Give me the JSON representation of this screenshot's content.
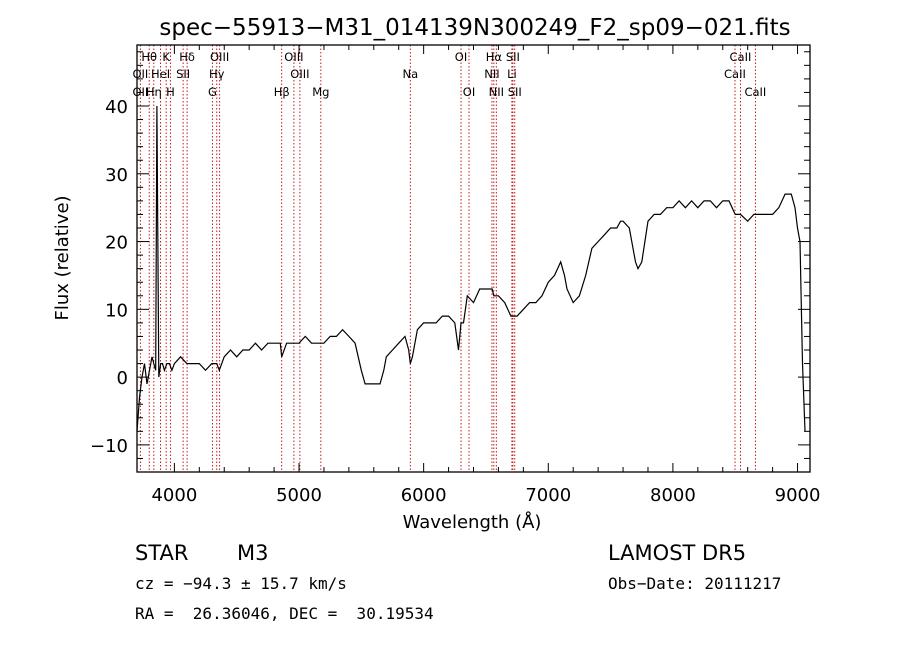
{
  "chart_data": {
    "type": "line",
    "title": "spec−55913−M31_014139N300249_F2_sp09−021.fits",
    "xlabel": "Wavelength (Å)",
    "ylabel": "Flux (relative)",
    "xlim": [
      3700,
      9100
    ],
    "ylim": [
      -14,
      49
    ],
    "xticks": [
      4000,
      5000,
      6000,
      7000,
      8000,
      9000
    ],
    "yticks": [
      -10,
      0,
      10,
      20,
      30,
      40
    ],
    "grid": false,
    "series": [
      {
        "x": [
          3700,
          3720,
          3740,
          3760,
          3780,
          3800,
          3820,
          3835,
          3850,
          3860,
          3875,
          3890,
          3905,
          3920,
          3940,
          3960,
          3980,
          4000,
          4050,
          4100,
          4150,
          4200,
          4250,
          4300,
          4340,
          4360,
          4400,
          4450,
          4500,
          4550,
          4600,
          4650,
          4700,
          4750,
          4800,
          4850,
          4861,
          4900,
          4950,
          5000,
          5050,
          5100,
          5150,
          5200,
          5250,
          5300,
          5350,
          5400,
          5450,
          5500,
          5530,
          5560,
          5600,
          5650,
          5680,
          5700,
          5750,
          5800,
          5850,
          5880,
          5893,
          5910,
          5950,
          6000,
          6050,
          6100,
          6150,
          6200,
          6250,
          6280,
          6300,
          6320,
          6350,
          6400,
          6450,
          6500,
          6550,
          6563,
          6600,
          6650,
          6700,
          6750,
          6800,
          6850,
          6900,
          6950,
          7000,
          7050,
          7100,
          7130,
          7150,
          7200,
          7250,
          7300,
          7350,
          7400,
          7450,
          7500,
          7550,
          7580,
          7600,
          7650,
          7680,
          7700,
          7720,
          7750,
          7800,
          7850,
          7900,
          7950,
          8000,
          8050,
          8100,
          8150,
          8200,
          8250,
          8300,
          8350,
          8400,
          8450,
          8500,
          8542,
          8600,
          8650,
          8700,
          8750,
          8800,
          8850,
          8900,
          8950,
          8980,
          9000,
          9020,
          9040,
          9060
        ],
        "y": [
          -8,
          -3,
          0,
          2,
          -1,
          1,
          3,
          2,
          1,
          40,
          0,
          2,
          2,
          1,
          2,
          2,
          1,
          2,
          3,
          2,
          2,
          2,
          1,
          2,
          2,
          1,
          3,
          4,
          3,
          4,
          4,
          5,
          4,
          5,
          5,
          5,
          3,
          5,
          5,
          5,
          6,
          5,
          5,
          5,
          6,
          6,
          7,
          6,
          5,
          1,
          -1,
          -1,
          -1,
          -1,
          1,
          3,
          4,
          5,
          6,
          4,
          2,
          3,
          7,
          8,
          8,
          8,
          9,
          9,
          8,
          4,
          8,
          8,
          12,
          11,
          13,
          13,
          13,
          12,
          12,
          11,
          9,
          9,
          10,
          11,
          11,
          12,
          14,
          15,
          17,
          15,
          13,
          11,
          12,
          15,
          19,
          20,
          21,
          22,
          22,
          23,
          23,
          22,
          19,
          17,
          16,
          17,
          23,
          24,
          24,
          25,
          25,
          26,
          25,
          26,
          25,
          26,
          26,
          25,
          26,
          26,
          24,
          24,
          23,
          24,
          24,
          24,
          24,
          25,
          27,
          27,
          25,
          22,
          20,
          2,
          -8
        ]
      }
    ],
    "line_labels": [
      {
        "label": "Hθ",
        "x": 3798,
        "row": 0
      },
      {
        "label": "OII",
        "x": 3727,
        "row": 1
      },
      {
        "label": "OII",
        "x": 3727,
        "row": 2
      },
      {
        "label": "Hη",
        "x": 3835,
        "row": 2
      },
      {
        "label": "K",
        "x": 3934,
        "row": 0
      },
      {
        "label": "HeI",
        "x": 3889,
        "row": 1
      },
      {
        "label": "H",
        "x": 3968,
        "row": 2
      },
      {
        "label": "Hδ",
        "x": 4102,
        "row": 0
      },
      {
        "label": "SII",
        "x": 4070,
        "row": 1
      },
      {
        "label": "OIII",
        "x": 4363,
        "row": 0
      },
      {
        "label": "Hγ",
        "x": 4340,
        "row": 1
      },
      {
        "label": "G",
        "x": 4305,
        "row": 2
      },
      {
        "label": "OIII",
        "x": 4959,
        "row": 0
      },
      {
        "label": "OIII",
        "x": 5007,
        "row": 1
      },
      {
        "label": "Hβ",
        "x": 4861,
        "row": 2
      },
      {
        "label": "Mg",
        "x": 5175,
        "row": 2
      },
      {
        "label": "Na",
        "x": 5893,
        "row": 1
      },
      {
        "label": "OI",
        "x": 6300,
        "row": 0
      },
      {
        "label": "OI",
        "x": 6364,
        "row": 2
      },
      {
        "label": "Hα",
        "x": 6563,
        "row": 0
      },
      {
        "label": "SII",
        "x": 6716,
        "row": 0
      },
      {
        "label": "NII",
        "x": 6548,
        "row": 1
      },
      {
        "label": "Li",
        "x": 6708,
        "row": 1
      },
      {
        "label": "NII",
        "x": 6583,
        "row": 2
      },
      {
        "label": "SII",
        "x": 6731,
        "row": 2
      },
      {
        "label": "CaII",
        "x": 8542,
        "row": 0
      },
      {
        "label": "CaII",
        "x": 8498,
        "row": 1
      },
      {
        "label": "CaII",
        "x": 8662,
        "row": 2
      }
    ],
    "line_positions": [
      3727,
      3798,
      3835,
      3889,
      3934,
      3968,
      4070,
      4102,
      4305,
      4340,
      4363,
      4861,
      4959,
      5007,
      5175,
      5893,
      6300,
      6364,
      6548,
      6563,
      6583,
      6708,
      6716,
      6731,
      8498,
      8542,
      8662
    ],
    "colors": {
      "spectrum": "#000000",
      "line_markers": "#c00000",
      "axes": "#000000"
    }
  },
  "info": {
    "class_label": "STAR",
    "subclass": "M3",
    "survey": "LAMOST DR5",
    "velocity": "cz = −94.3 ± 15.7 km/s",
    "obs_date": "Obs−Date: 20111217",
    "coords": "RA =  26.36046, DEC =  30.19534"
  }
}
